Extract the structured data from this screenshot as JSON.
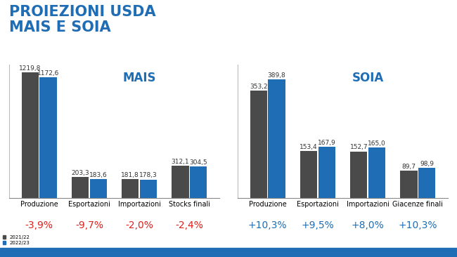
{
  "header": {
    "title": "PROIEZIONI USDA\nMAIS E SOIA"
  },
  "chart_data": [
    {
      "type": "bar",
      "title": "MAIS",
      "categories": [
        "Produzione",
        "Esportazioni",
        "Importazioni",
        "Stocks finali"
      ],
      "series": [
        {
          "name": "2021/22",
          "color": "#4a4a4a",
          "values": [
            1219.8,
            203.3,
            181.8,
            312.1
          ],
          "value_labels": [
            "1219,8",
            "203,3",
            "181,8",
            "312,1"
          ]
        },
        {
          "name": "2022/23",
          "color": "#1f6db4",
          "values": [
            1172.6,
            183.6,
            178.3,
            304.5
          ],
          "value_labels": [
            "1172,6",
            "183,6",
            "178,3",
            "304,5"
          ]
        }
      ],
      "annotations": [
        "-3,9%",
        "-9,7%",
        "-2,0%",
        "-2,4%"
      ],
      "ylim": [
        0,
        1300
      ],
      "yticks": [],
      "tick_labels": "x",
      "data_labels": true,
      "grid": false,
      "legend": "lower left"
    },
    {
      "type": "bar",
      "title": "SOIA",
      "categories": [
        "Produzione",
        "Esportazioni",
        "Importazioni",
        "Giacenze finali"
      ],
      "series": [
        {
          "name": "2021/22",
          "color": "#4a4a4a",
          "values": [
            353.2,
            153.4,
            152.7,
            89.7
          ],
          "value_labels": [
            "353,2",
            "153,4",
            "152,7",
            "89,7"
          ]
        },
        {
          "name": "2022/23",
          "color": "#1f6db4",
          "values": [
            389.8,
            167.9,
            165.0,
            98.9
          ],
          "value_labels": [
            "389,8",
            "167,9",
            "165,0",
            "98,9"
          ]
        }
      ],
      "annotations": [
        "+10,3%",
        "+9,5%",
        "+8,0%",
        "+10,3%"
      ],
      "ylim": [
        0,
        440
      ],
      "yticks": [],
      "tick_labels": "x",
      "data_labels": true,
      "grid": false
    }
  ]
}
